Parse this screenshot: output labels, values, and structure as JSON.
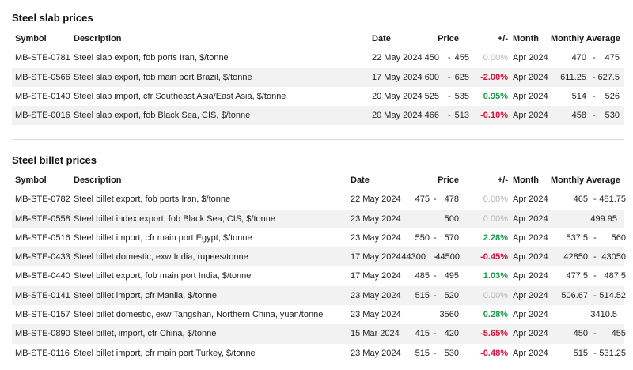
{
  "slab": {
    "title": "Steel slab prices",
    "headers": {
      "symbol": "Symbol",
      "description": "Description",
      "date": "Date",
      "price": "Price",
      "change": "+/-",
      "month": "Month",
      "avg": "Monthly Average"
    },
    "rows": [
      {
        "symbol": "MB-STE-0781",
        "description": "Steel slab export, fob ports Iran, $/tonne",
        "date": "22 May 2024",
        "price_lo": "450",
        "price_hi": "455",
        "change": "0.00%",
        "dir": "flat",
        "month": "Apr 2024",
        "avg_lo": "470",
        "avg_hi": "475"
      },
      {
        "symbol": "MB-STE-0566",
        "description": "Steel slab export, fob main port Brazil, $/tonne",
        "date": "17 May 2024",
        "price_lo": "600",
        "price_hi": "625",
        "change": "-2.00%",
        "dir": "down",
        "month": "Apr 2024",
        "avg_lo": "611.25",
        "avg_hi": "627.5"
      },
      {
        "symbol": "MB-STE-0140",
        "description": "Steel slab import, cfr Southeast Asia/East Asia, $/tonne",
        "date": "20 May 2024",
        "price_lo": "525",
        "price_hi": "535",
        "change": "0.95%",
        "dir": "up",
        "month": "Apr 2024",
        "avg_lo": "514",
        "avg_hi": "526"
      },
      {
        "symbol": "MB-STE-0016",
        "description": "Steel slab export, fob Black Sea, CIS, $/tonne",
        "date": "20 May 2024",
        "price_lo": "466",
        "price_hi": "513",
        "change": "-0.10%",
        "dir": "down",
        "month": "Apr 2024",
        "avg_lo": "458",
        "avg_hi": "530"
      }
    ]
  },
  "billet": {
    "title": "Steel billet prices",
    "headers": {
      "symbol": "Symbol",
      "description": "Description",
      "date": "Date",
      "price": "Price",
      "change": "+/-",
      "month": "Month",
      "avg": "Monthly Average"
    },
    "rows": [
      {
        "symbol": "MB-STE-0782",
        "description": "Steel billet export, fob ports Iran, $/tonne",
        "date": "22 May 2024",
        "price_lo": "475",
        "price_hi": "478",
        "change": "0.00%",
        "dir": "flat",
        "month": "Apr 2024",
        "avg_lo": "465",
        "avg_hi": "481.75"
      },
      {
        "symbol": "MB-STE-0558",
        "description": "Steel billet index export, fob Black Sea, CIS, $/tonne",
        "date": "23 May 2024",
        "price": "500",
        "change": "0.00%",
        "dir": "flat",
        "month": "Apr 2024",
        "avg": "499.95"
      },
      {
        "symbol": "MB-STE-0516",
        "description": "Steel billet import, cfr main port Egypt, $/tonne",
        "date": "23 May 2024",
        "price_lo": "550",
        "price_hi": "570",
        "change": "2.28%",
        "dir": "up",
        "month": "Apr 2024",
        "avg_lo": "537.5",
        "avg_hi": "560"
      },
      {
        "symbol": "MB-STE-0433",
        "description": "Steel billet domestic, exw India, rupees/tonne",
        "date": "17 May 2024",
        "price_lo": "44300",
        "price_hi": "44500",
        "change": "-0.45%",
        "dir": "down",
        "month": "Apr 2024",
        "avg_lo": "42850",
        "avg_hi": "43050"
      },
      {
        "symbol": "MB-STE-0440",
        "description": "Steel billet export, fob main port India, $/tonne",
        "date": "17 May 2024",
        "price_lo": "485",
        "price_hi": "495",
        "change": "1.03%",
        "dir": "up",
        "month": "Apr 2024",
        "avg_lo": "477.5",
        "avg_hi": "487.5"
      },
      {
        "symbol": "MB-STE-0141",
        "description": "Steel billet import, cfr Manila, $/tonne",
        "date": "23 May 2024",
        "price_lo": "515",
        "price_hi": "520",
        "change": "0.00%",
        "dir": "flat",
        "month": "Apr 2024",
        "avg_lo": "506.67",
        "avg_hi": "514.52"
      },
      {
        "symbol": "MB-STE-0157",
        "description": "Steel billet domestic, exw Tangshan, Northern China, yuan/tonne",
        "date": "23 May 2024",
        "price": "3560",
        "change": "0.28%",
        "dir": "up",
        "month": "Apr 2024",
        "avg": "3410.5"
      },
      {
        "symbol": "MB-STE-0890",
        "description": "Steel billet, import, cfr China, $/tonne",
        "date": "15 Mar 2024",
        "price_lo": "415",
        "price_hi": "420",
        "change": "-5.65%",
        "dir": "down",
        "month": "Apr 2024",
        "avg_lo": "450",
        "avg_hi": "455"
      },
      {
        "symbol": "MB-STE-0116",
        "description": "Steel billet import, cfr main port Turkey, $/tonne",
        "date": "23 May 2024",
        "price_lo": "515",
        "price_hi": "530",
        "change": "-0.48%",
        "dir": "down",
        "month": "Apr 2024",
        "avg_lo": "515",
        "avg_hi": "531.25"
      }
    ]
  }
}
